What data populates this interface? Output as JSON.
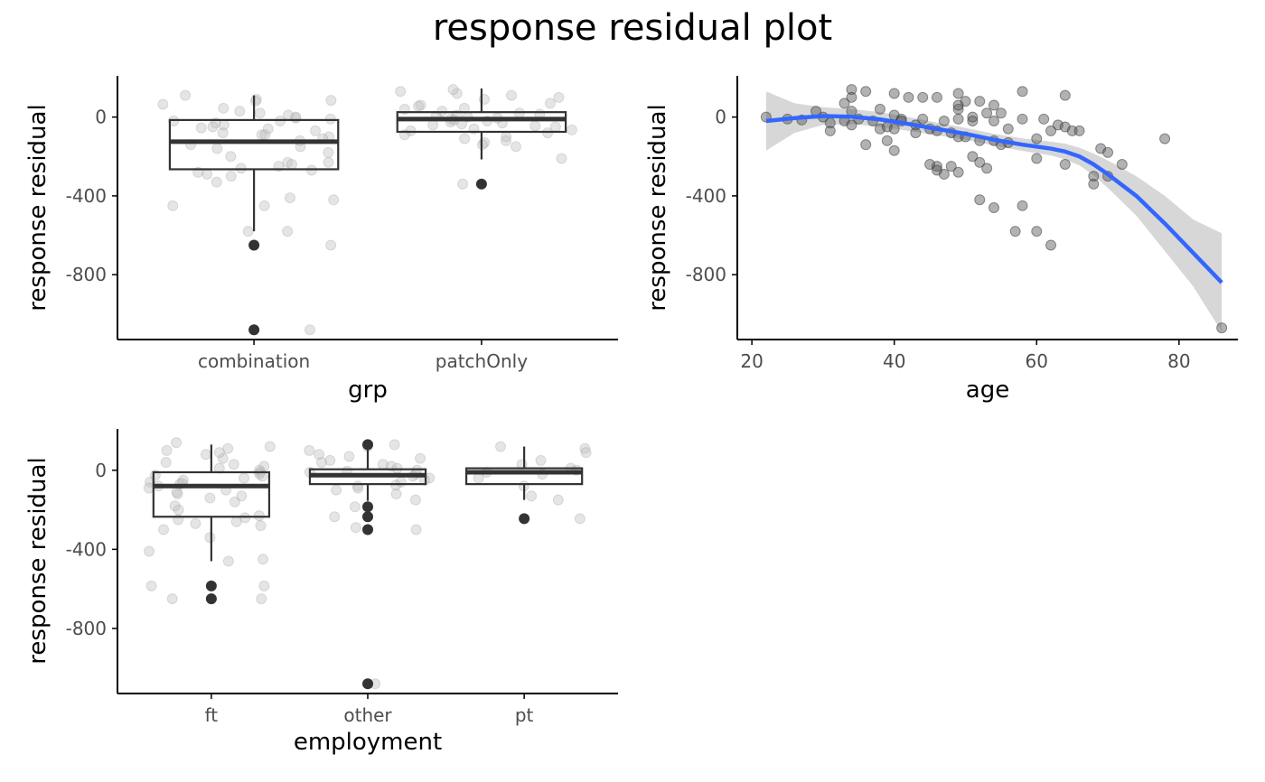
{
  "title": "response residual plot",
  "colors": {
    "jitter_point": "#bdbdbd",
    "outlier": "#333333",
    "box_line": "#333333",
    "scatter_point": "#555555",
    "smooth_line": "#3366ff",
    "ribbon": "#d3d3d3",
    "axis": "#000000"
  },
  "chart_data": [
    {
      "type": "box",
      "xlabel": "grp",
      "ylabel": "response residual",
      "ylim": [
        -1120,
        200
      ],
      "yticks": [
        0,
        -400,
        -800
      ],
      "categories": [
        "combination",
        "patchOnly"
      ],
      "boxes": [
        {
          "category": "combination",
          "q1": -265,
          "median": -125,
          "q3": -15,
          "whisker_low": -580,
          "whisker_high": 110,
          "outliers": [
            -650,
            -1080
          ]
        },
        {
          "category": "patchOnly",
          "q1": -75,
          "median": -10,
          "q3": 25,
          "whisker_low": -215,
          "whisker_high": 145,
          "outliers": [
            -340
          ]
        }
      ],
      "jitter": [
        {
          "category": "combination",
          "values": [
            65,
            -10,
            -30,
            -55,
            -5,
            20,
            -80,
            -120,
            -150,
            -90,
            -230,
            -250,
            -270,
            -290,
            -300,
            -240,
            -410,
            -450,
            -580,
            -580,
            -650,
            -1080,
            110,
            90,
            85,
            10,
            -20,
            -60,
            -100,
            -180,
            -200,
            -40,
            -70,
            45,
            -140,
            -160,
            -260,
            -330,
            -420,
            -450,
            0,
            -110,
            -20,
            -50,
            -90,
            80,
            30,
            -280,
            -230
          ]
        },
        {
          "category": "patchOnly",
          "values": [
            130,
            120,
            140,
            110,
            100,
            90,
            60,
            45,
            30,
            10,
            0,
            -10,
            -20,
            -30,
            -40,
            -50,
            -60,
            -80,
            -100,
            -120,
            -130,
            -140,
            -150,
            -210,
            -340,
            20,
            5,
            -5,
            -15,
            -25,
            -35,
            -45,
            70,
            -70,
            15,
            -90,
            -110,
            55,
            40,
            -65
          ]
        }
      ]
    },
    {
      "type": "scatter",
      "xlabel": "age",
      "ylabel": "response residual",
      "xlim": [
        21,
        87
      ],
      "ylim": [
        -1120,
        200
      ],
      "xticks": [
        20,
        40,
        60,
        80
      ],
      "yticks": [
        0,
        -400,
        -800
      ],
      "points": [
        [
          22,
          0
        ],
        [
          25,
          -10
        ],
        [
          27,
          -15
        ],
        [
          29,
          30
        ],
        [
          30,
          0
        ],
        [
          31,
          -70
        ],
        [
          31,
          -30
        ],
        [
          33,
          70
        ],
        [
          33,
          -20
        ],
        [
          34,
          140
        ],
        [
          34,
          100
        ],
        [
          34,
          30
        ],
        [
          34,
          -40
        ],
        [
          35,
          -10
        ],
        [
          36,
          130
        ],
        [
          36,
          -140
        ],
        [
          37,
          -20
        ],
        [
          38,
          -60
        ],
        [
          38,
          40
        ],
        [
          39,
          -120
        ],
        [
          39,
          -50
        ],
        [
          40,
          120
        ],
        [
          40,
          10
        ],
        [
          40,
          -60
        ],
        [
          40,
          -170
        ],
        [
          41,
          -10
        ],
        [
          41,
          -20
        ],
        [
          42,
          100
        ],
        [
          43,
          -40
        ],
        [
          43,
          -80
        ],
        [
          44,
          100
        ],
        [
          44,
          -10
        ],
        [
          45,
          -60
        ],
        [
          45,
          -240
        ],
        [
          46,
          100
        ],
        [
          46,
          -70
        ],
        [
          46,
          -250
        ],
        [
          46,
          -270
        ],
        [
          47,
          -20
        ],
        [
          47,
          -290
        ],
        [
          48,
          -80
        ],
        [
          48,
          -250
        ],
        [
          49,
          120
        ],
        [
          49,
          -100
        ],
        [
          49,
          -10
        ],
        [
          49,
          -280
        ],
        [
          49,
          40
        ],
        [
          49,
          60
        ],
        [
          50,
          80
        ],
        [
          50,
          -100
        ],
        [
          51,
          0
        ],
        [
          51,
          -200
        ],
        [
          51,
          -20
        ],
        [
          52,
          80
        ],
        [
          52,
          -120
        ],
        [
          52,
          -230
        ],
        [
          52,
          -420
        ],
        [
          53,
          -260
        ],
        [
          53,
          20
        ],
        [
          54,
          -20
        ],
        [
          54,
          60
        ],
        [
          54,
          -120
        ],
        [
          54,
          -460
        ],
        [
          55,
          20
        ],
        [
          55,
          -140
        ],
        [
          56,
          -60
        ],
        [
          56,
          -130
        ],
        [
          57,
          -580
        ],
        [
          58,
          130
        ],
        [
          58,
          -10
        ],
        [
          58,
          -450
        ],
        [
          60,
          -110
        ],
        [
          60,
          -210
        ],
        [
          60,
          -580
        ],
        [
          61,
          -10
        ],
        [
          62,
          -70
        ],
        [
          62,
          -650
        ],
        [
          63,
          -40
        ],
        [
          64,
          110
        ],
        [
          64,
          -240
        ],
        [
          64,
          -50
        ],
        [
          65,
          -70
        ],
        [
          66,
          -70
        ],
        [
          68,
          -300
        ],
        [
          68,
          -340
        ],
        [
          69,
          -160
        ],
        [
          70,
          -180
        ],
        [
          70,
          -300
        ],
        [
          72,
          -240
        ],
        [
          78,
          -110
        ],
        [
          86,
          -1070
        ]
      ],
      "smooth": [
        [
          22,
          -20
        ],
        [
          26,
          -5
        ],
        [
          30,
          5
        ],
        [
          34,
          2
        ],
        [
          38,
          -12
        ],
        [
          42,
          -35
        ],
        [
          46,
          -60
        ],
        [
          50,
          -85
        ],
        [
          54,
          -115
        ],
        [
          58,
          -140
        ],
        [
          62,
          -160
        ],
        [
          64,
          -175
        ],
        [
          66,
          -200
        ],
        [
          68,
          -240
        ],
        [
          70,
          -290
        ],
        [
          74,
          -400
        ],
        [
          78,
          -540
        ],
        [
          82,
          -690
        ],
        [
          86,
          -840
        ]
      ],
      "ribbon_upper": [
        [
          22,
          130
        ],
        [
          26,
          70
        ],
        [
          30,
          50
        ],
        [
          34,
          40
        ],
        [
          38,
          25
        ],
        [
          42,
          0
        ],
        [
          46,
          -28
        ],
        [
          50,
          -55
        ],
        [
          54,
          -85
        ],
        [
          58,
          -108
        ],
        [
          62,
          -125
        ],
        [
          64,
          -135
        ],
        [
          66,
          -155
        ],
        [
          68,
          -185
        ],
        [
          70,
          -220
        ],
        [
          74,
          -300
        ],
        [
          78,
          -400
        ],
        [
          82,
          -520
        ],
        [
          86,
          -590
        ]
      ],
      "ribbon_lower": [
        [
          22,
          -170
        ],
        [
          26,
          -80
        ],
        [
          30,
          -40
        ],
        [
          34,
          -36
        ],
        [
          38,
          -49
        ],
        [
          42,
          -70
        ],
        [
          46,
          -92
        ],
        [
          50,
          -115
        ],
        [
          54,
          -145
        ],
        [
          58,
          -172
        ],
        [
          62,
          -195
        ],
        [
          64,
          -215
        ],
        [
          66,
          -245
        ],
        [
          68,
          -295
        ],
        [
          70,
          -360
        ],
        [
          74,
          -500
        ],
        [
          78,
          -680
        ],
        [
          82,
          -860
        ],
        [
          86,
          -1090
        ]
      ]
    },
    {
      "type": "box",
      "xlabel": "employment",
      "ylabel": "response residual",
      "ylim": [
        -1120,
        200
      ],
      "yticks": [
        0,
        -400,
        -800
      ],
      "categories": [
        "ft",
        "other",
        "pt"
      ],
      "boxes": [
        {
          "category": "ft",
          "q1": -235,
          "median": -80,
          "q3": -10,
          "whisker_low": -460,
          "whisker_high": 130,
          "outliers": [
            -585,
            -650
          ]
        },
        {
          "category": "other",
          "q1": -70,
          "median": -25,
          "q3": 5,
          "whisker_low": -155,
          "whisker_high": 130,
          "outliers": [
            130,
            -185,
            -235,
            -300,
            -1080
          ]
        },
        {
          "category": "pt",
          "q1": -70,
          "median": -10,
          "q3": 10,
          "whisker_low": -150,
          "whisker_high": 120,
          "outliers": [
            -245
          ]
        }
      ],
      "jitter": [
        {
          "category": "ft",
          "values": [
            140,
            110,
            100,
            80,
            60,
            40,
            20,
            0,
            -10,
            -20,
            -30,
            -40,
            -50,
            -60,
            -70,
            -80,
            -90,
            -100,
            -120,
            -130,
            -140,
            -160,
            -200,
            -230,
            -250,
            -270,
            -280,
            -300,
            -340,
            -410,
            -450,
            -460,
            -585,
            -585,
            -650,
            -650,
            120,
            90,
            30,
            -65,
            -110,
            -180,
            10,
            -25,
            -240,
            -260
          ]
        },
        {
          "category": "other",
          "values": [
            130,
            120,
            100,
            80,
            60,
            40,
            20,
            0,
            -10,
            -20,
            -30,
            -40,
            -50,
            -60,
            -80,
            -100,
            -120,
            -150,
            -185,
            -235,
            -290,
            -300,
            -1080,
            70,
            30,
            10,
            -5,
            -75,
            -90,
            50
          ]
        },
        {
          "category": "pt",
          "values": [
            120,
            110,
            90,
            50,
            10,
            0,
            -10,
            -20,
            -40,
            -80,
            -130,
            -150,
            -245,
            30
          ]
        }
      ]
    }
  ]
}
